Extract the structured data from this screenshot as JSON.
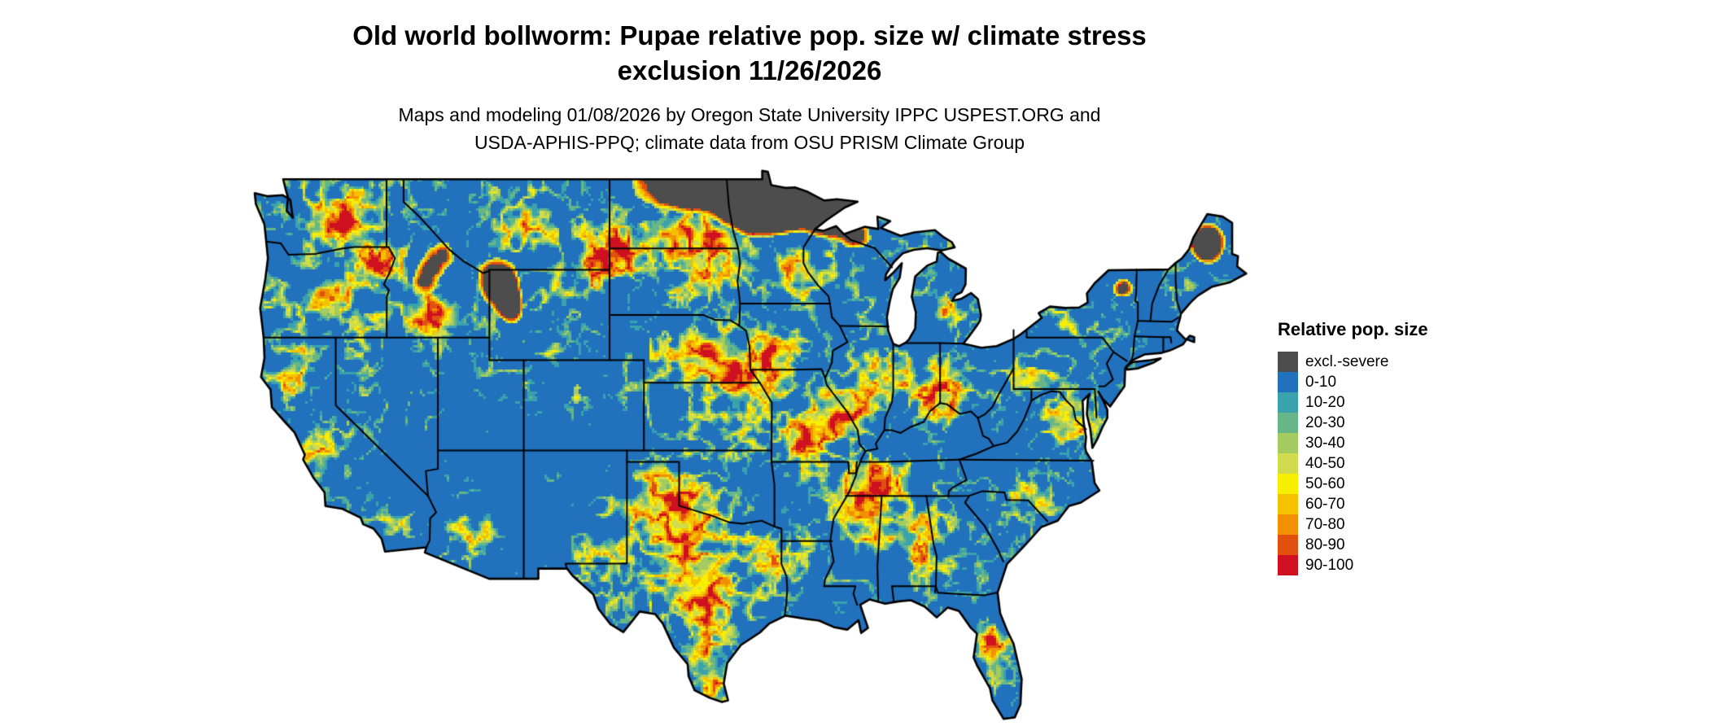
{
  "title": {
    "line1": "Old world bollworm: Pupae relative pop. size w/ climate stress",
    "line2": "exclusion 11/26/2026"
  },
  "subtitle": {
    "line1": "Maps and modeling 01/08/2026 by Oregon State University IPPC USPEST.ORG and",
    "line2": "USDA-APHIS-PPQ; climate data from OSU PRISM Climate Group"
  },
  "legend": {
    "title": "Relative pop. size",
    "items": [
      {
        "label": "excl.-severe",
        "color": "#4d4d4d"
      },
      {
        "label": "0-10",
        "color": "#2171bd"
      },
      {
        "label": "10-20",
        "color": "#3aa2ad"
      },
      {
        "label": "20-30",
        "color": "#67b687"
      },
      {
        "label": "30-40",
        "color": "#a3cb60"
      },
      {
        "label": "40-50",
        "color": "#d0dc4d"
      },
      {
        "label": "50-60",
        "color": "#f8ef00"
      },
      {
        "label": "60-70",
        "color": "#f6c200"
      },
      {
        "label": "70-80",
        "color": "#f19000"
      },
      {
        "label": "80-90",
        "color": "#e1500e"
      },
      {
        "label": "90-100",
        "color": "#cf1020"
      }
    ]
  }
}
